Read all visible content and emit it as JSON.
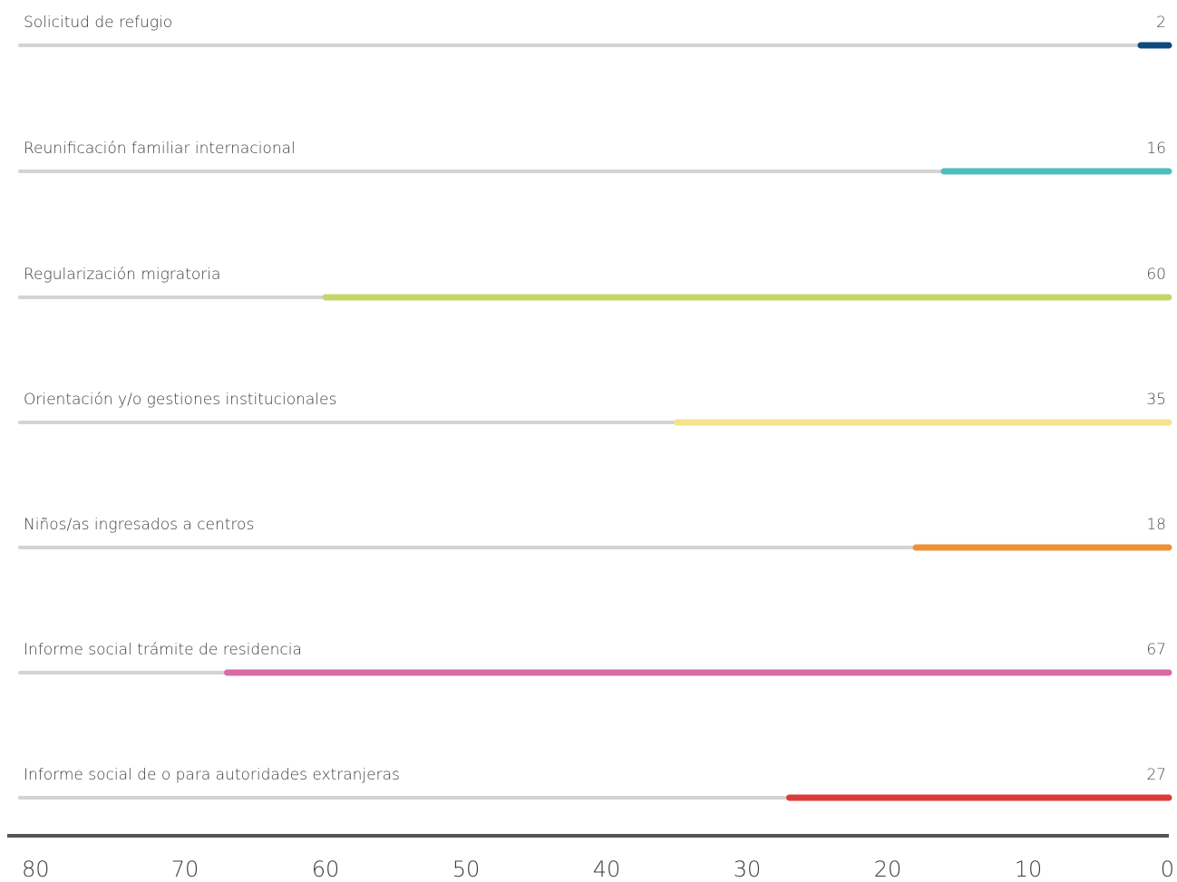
{
  "chart_data": {
    "type": "bar",
    "orientation": "horizontal",
    "x_direction": "reversed",
    "categories": [
      "Solicitud de refugio",
      "Reunificación familiar internacional",
      "Regularización migratoria",
      "Orientación y/o gestiones institucionales",
      "Niños/as ingresados a centros",
      "Informe social trámite de residencia",
      "Informe social de o para autoridades extranjeras"
    ],
    "values": [
      2,
      16,
      60,
      35,
      18,
      67,
      27
    ],
    "colors": [
      "#0d4a7e",
      "#4cbfbd",
      "#c4d66a",
      "#f3e38f",
      "#ee9136",
      "#d96aa6",
      "#db3b3b"
    ],
    "track_color": "#d3d3d3",
    "axis_color": "#555555",
    "xlim": [
      0,
      80
    ],
    "ticks": [
      80,
      70,
      60,
      50,
      40,
      30,
      20,
      10,
      0
    ],
    "grid": false,
    "legend": "none"
  }
}
